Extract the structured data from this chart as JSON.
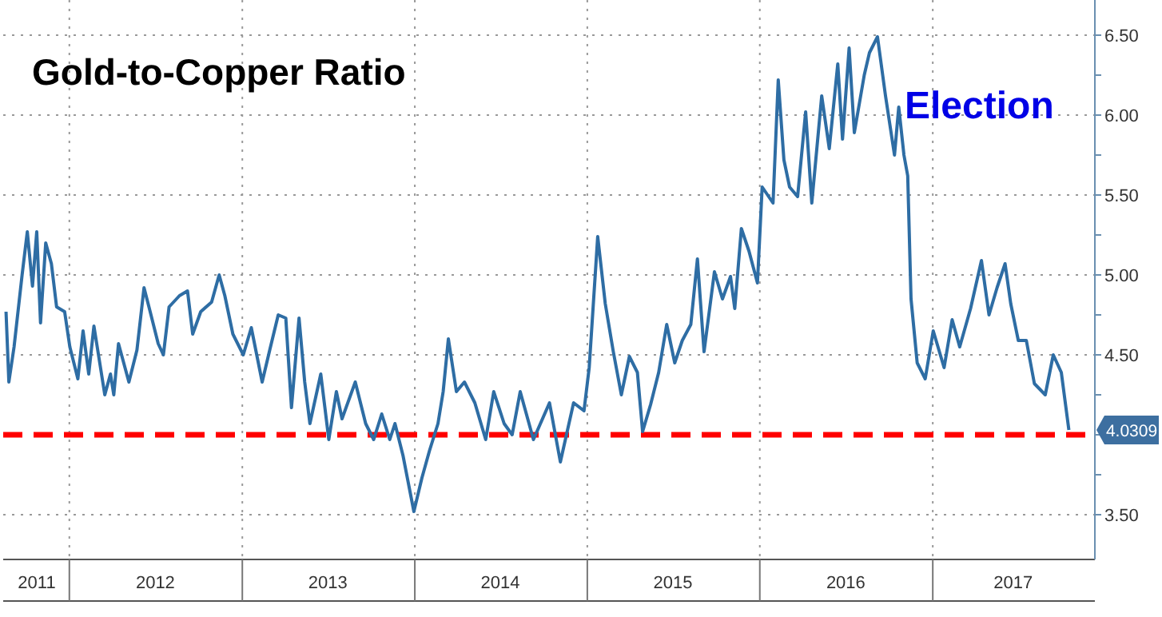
{
  "chart_data": {
    "type": "line",
    "title": "Gold-to-Copper Ratio",
    "annotations": [
      "Election",
      "4.0309"
    ],
    "xlim": [
      "2011-08-14",
      "2017-12-10"
    ],
    "ylim": [
      3.22,
      6.72
    ],
    "xticks": [
      {
        "value": "2011-10-24",
        "label": "2011"
      },
      {
        "value": "2012-01-01",
        "label": null
      },
      {
        "value": "2012-07-01",
        "label": "2012"
      },
      {
        "value": "2013-01-01",
        "label": null
      },
      {
        "value": "2013-07-01",
        "label": "2013"
      },
      {
        "value": "2014-01-01",
        "label": null
      },
      {
        "value": "2014-07-01",
        "label": "2014"
      },
      {
        "value": "2015-01-01",
        "label": null
      },
      {
        "value": "2015-07-01",
        "label": "2015"
      },
      {
        "value": "2016-01-01",
        "label": null
      },
      {
        "value": "2016-07-01",
        "label": "2016"
      },
      {
        "value": "2017-01-01",
        "label": null
      },
      {
        "value": "2017-06-20",
        "label": "2017"
      }
    ],
    "yticks": [
      {
        "value": 3.5,
        "label": "3.50"
      },
      {
        "value": 3.75,
        "label": null
      },
      {
        "value": 4,
        "label": null
      },
      {
        "value": 4.25,
        "label": null
      },
      {
        "value": 4.5,
        "label": "4.50"
      },
      {
        "value": 4.75,
        "label": null
      },
      {
        "value": 5,
        "label": "5.00"
      },
      {
        "value": 5.25,
        "label": null
      },
      {
        "value": 5.5,
        "label": "5.50"
      },
      {
        "value": 5.75,
        "label": null
      },
      {
        "value": 6,
        "label": "6.00"
      },
      {
        "value": 6.25,
        "label": null
      },
      {
        "value": 6.5,
        "label": "6.50"
      }
    ],
    "grid": true,
    "line_style": "solid",
    "ref_lines": [
      {
        "axis": "y",
        "value": 4.0,
        "color": "#ff0000",
        "line_style": "dashed"
      }
    ],
    "series": [
      {
        "color": "#2e6da4",
        "x": [
          "2011-08-20",
          "2011-08-26",
          "2011-09-06",
          "2011-09-23",
          "2011-10-04",
          "2011-10-15",
          "2011-10-24",
          "2011-11-01",
          "2011-11-12",
          "2011-11-24",
          "2011-12-05",
          "2011-12-22",
          "2012-01-02",
          "2012-01-19",
          "2012-01-30",
          "2012-02-11",
          "2012-02-22",
          "2012-03-16",
          "2012-03-28",
          "2012-04-04",
          "2012-04-14",
          "2012-05-06",
          "2012-05-23",
          "2012-06-07",
          "2012-06-20",
          "2012-07-07",
          "2012-07-18",
          "2012-07-30",
          "2012-08-21",
          "2012-09-07",
          "2012-09-18",
          "2012-10-05",
          "2012-10-28",
          "2012-11-13",
          "2012-11-25",
          "2012-12-12",
          "2013-01-03",
          "2013-01-20",
          "2013-02-12",
          "2013-02-28",
          "2013-03-18",
          "2013-04-03",
          "2013-04-15",
          "2013-05-01",
          "2013-05-13",
          "2013-05-24",
          "2013-06-16",
          "2013-07-03",
          "2013-07-19",
          "2013-07-31",
          "2013-08-28",
          "2013-09-19",
          "2013-10-06",
          "2013-10-23",
          "2013-11-09",
          "2013-11-20",
          "2013-12-07",
          "2013-12-30",
          "2014-01-16",
          "2014-02-01",
          "2014-02-19",
          "2014-03-02",
          "2014-03-13",
          "2014-03-30",
          "2014-04-16",
          "2014-05-08",
          "2014-05-31",
          "2014-06-17",
          "2014-07-09",
          "2014-07-26",
          "2014-08-12",
          "2014-09-09",
          "2014-10-13",
          "2014-11-05",
          "2014-12-03",
          "2014-12-25",
          "2015-01-05",
          "2015-01-23",
          "2015-02-08",
          "2015-02-25",
          "2015-03-14",
          "2015-03-31",
          "2015-04-17",
          "2015-04-28",
          "2015-05-15",
          "2015-06-01",
          "2015-06-18",
          "2015-07-05",
          "2015-07-21",
          "2015-08-08",
          "2015-08-22",
          "2015-09-05",
          "2015-09-27",
          "2015-10-14",
          "2015-10-31",
          "2015-11-09",
          "2015-11-23",
          "2015-12-09",
          "2015-12-27",
          "2016-01-06",
          "2016-01-29",
          "2016-02-09",
          "2016-02-21",
          "2016-03-04",
          "2016-03-21",
          "2016-04-07",
          "2016-04-20",
          "2016-05-11",
          "2016-05-27",
          "2016-06-14",
          "2016-06-24",
          "2016-07-08",
          "2016-07-19",
          "2016-08-09",
          "2016-08-20",
          "2016-09-06",
          "2016-09-23",
          "2016-10-12",
          "2016-10-21",
          "2016-11-01",
          "2016-11-09",
          "2016-11-16",
          "2016-11-29",
          "2016-12-16",
          "2017-01-02",
          "2017-01-25",
          "2017-02-11",
          "2017-02-27",
          "2017-03-22",
          "2017-04-14",
          "2017-04-30",
          "2017-05-17",
          "2017-06-03",
          "2017-06-15",
          "2017-07-01",
          "2017-07-18",
          "2017-08-04",
          "2017-08-27",
          "2017-09-13",
          "2017-09-30",
          "2017-10-16"
        ],
        "values": [
          4.77,
          4.33,
          4.55,
          5.0,
          5.27,
          4.93,
          5.27,
          4.7,
          5.2,
          5.07,
          4.8,
          4.77,
          4.55,
          4.35,
          4.65,
          4.38,
          4.68,
          4.25,
          4.38,
          4.25,
          4.57,
          4.33,
          4.53,
          4.92,
          4.77,
          4.57,
          4.5,
          4.8,
          4.87,
          4.9,
          4.63,
          4.77,
          4.83,
          5.0,
          4.87,
          4.63,
          4.5,
          4.67,
          4.33,
          4.53,
          4.75,
          4.73,
          4.17,
          4.73,
          4.33,
          4.07,
          4.38,
          3.97,
          4.27,
          4.1,
          4.33,
          4.07,
          3.97,
          4.13,
          3.97,
          4.07,
          3.87,
          3.52,
          3.73,
          3.9,
          4.07,
          4.27,
          4.6,
          4.27,
          4.33,
          4.2,
          3.97,
          4.27,
          4.07,
          4.0,
          4.27,
          3.97,
          4.2,
          3.83,
          4.2,
          4.15,
          4.42,
          5.24,
          4.82,
          4.52,
          4.25,
          4.49,
          4.39,
          4.02,
          4.19,
          4.39,
          4.69,
          4.45,
          4.59,
          4.69,
          5.1,
          4.52,
          5.02,
          4.85,
          4.99,
          4.79,
          5.29,
          5.15,
          4.95,
          5.55,
          5.45,
          6.22,
          5.72,
          5.55,
          5.49,
          6.02,
          5.45,
          6.12,
          5.79,
          6.32,
          5.85,
          6.42,
          5.89,
          6.25,
          6.39,
          6.49,
          6.12,
          5.75,
          6.05,
          5.75,
          5.62,
          4.85,
          4.45,
          4.35,
          4.65,
          4.42,
          4.72,
          4.55,
          4.79,
          5.09,
          4.75,
          4.92,
          5.07,
          4.82,
          4.59,
          4.59,
          4.32,
          4.25,
          4.5,
          4.39,
          4.03
        ]
      }
    ]
  }
}
